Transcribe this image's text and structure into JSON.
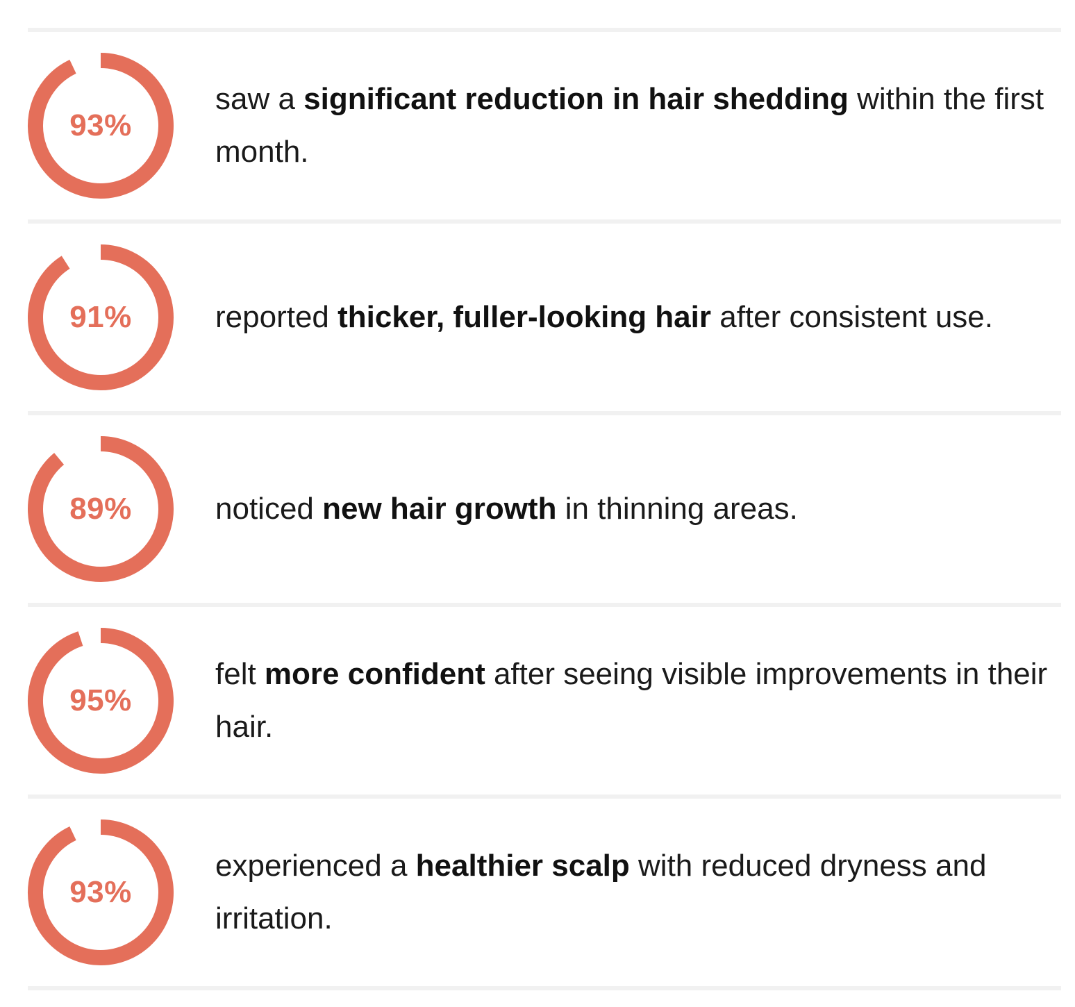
{
  "accent_color": "#e46f5a",
  "stats": [
    {
      "percent_label": "93%",
      "percent_value": 93,
      "text_before": "saw a ",
      "text_bold": "significant reduction in hair shedding",
      "text_after": " within the first month."
    },
    {
      "percent_label": "91%",
      "percent_value": 91,
      "text_before": "reported ",
      "text_bold": "thicker, fuller-looking hair",
      "text_after": " after consistent use."
    },
    {
      "percent_label": "89%",
      "percent_value": 89,
      "text_before": "noticed ",
      "text_bold": "new hair growth",
      "text_after": " in thinning areas."
    },
    {
      "percent_label": "95%",
      "percent_value": 95,
      "text_before": "felt ",
      "text_bold": "more confident",
      "text_after": " after seeing visible improvements in their hair."
    },
    {
      "percent_label": "93%",
      "percent_value": 93,
      "text_before": "experienced a ",
      "text_bold": "healthier scalp",
      "text_after": " with reduced dryness and irritation."
    }
  ]
}
